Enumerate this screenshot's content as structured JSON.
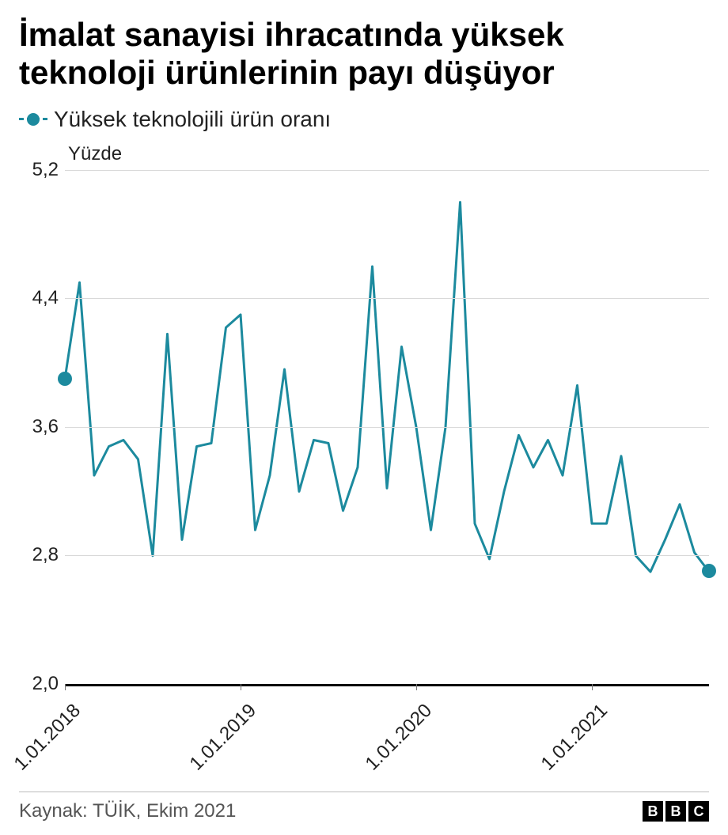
{
  "title": "İmalat sanayisi ihracatında yüksek teknoloji ürünlerinin payı düşüyor",
  "legend": {
    "label": "Yüksek teknolojili ürün oranı"
  },
  "ylabel": "Yüzde",
  "source": "Kaynak: TÜİK, Ekim 2021",
  "logo_letters": [
    "B",
    "B",
    "C"
  ],
  "chart": {
    "type": "line",
    "series_color": "#1c8a9e",
    "marker_color": "#1c8a9e",
    "line_width": 3,
    "marker_radius": 9,
    "grid_color": "#d9d9d9",
    "baseline_color": "#000000",
    "background_color": "#ffffff",
    "text_color": "#222222",
    "ylim": [
      2.0,
      5.2
    ],
    "yticks": [
      2.0,
      2.8,
      3.6,
      4.4,
      5.2
    ],
    "ytick_labels": [
      "2,0",
      "2,8",
      "3,6",
      "4,4",
      "5,2"
    ],
    "xtick_indices": [
      0,
      12,
      24,
      36
    ],
    "xtick_labels": [
      "1.01.2018",
      "1.01.2019",
      "1.01.2020",
      "1.01.2021"
    ],
    "n_points": 45,
    "values": [
      3.9,
      4.5,
      3.3,
      3.48,
      3.52,
      3.4,
      2.8,
      4.18,
      2.9,
      3.48,
      3.5,
      4.22,
      4.3,
      2.96,
      3.3,
      3.96,
      3.2,
      3.52,
      3.5,
      3.08,
      3.35,
      4.6,
      3.22,
      4.1,
      3.6,
      2.96,
      3.6,
      5.0,
      3.0,
      2.78,
      3.2,
      3.55,
      3.35,
      3.52,
      3.3,
      3.86,
      3.0,
      3.0,
      3.42,
      2.8,
      2.7,
      2.9,
      3.12,
      2.82,
      2.7
    ],
    "endpoint_start": true,
    "endpoint_end": true
  }
}
